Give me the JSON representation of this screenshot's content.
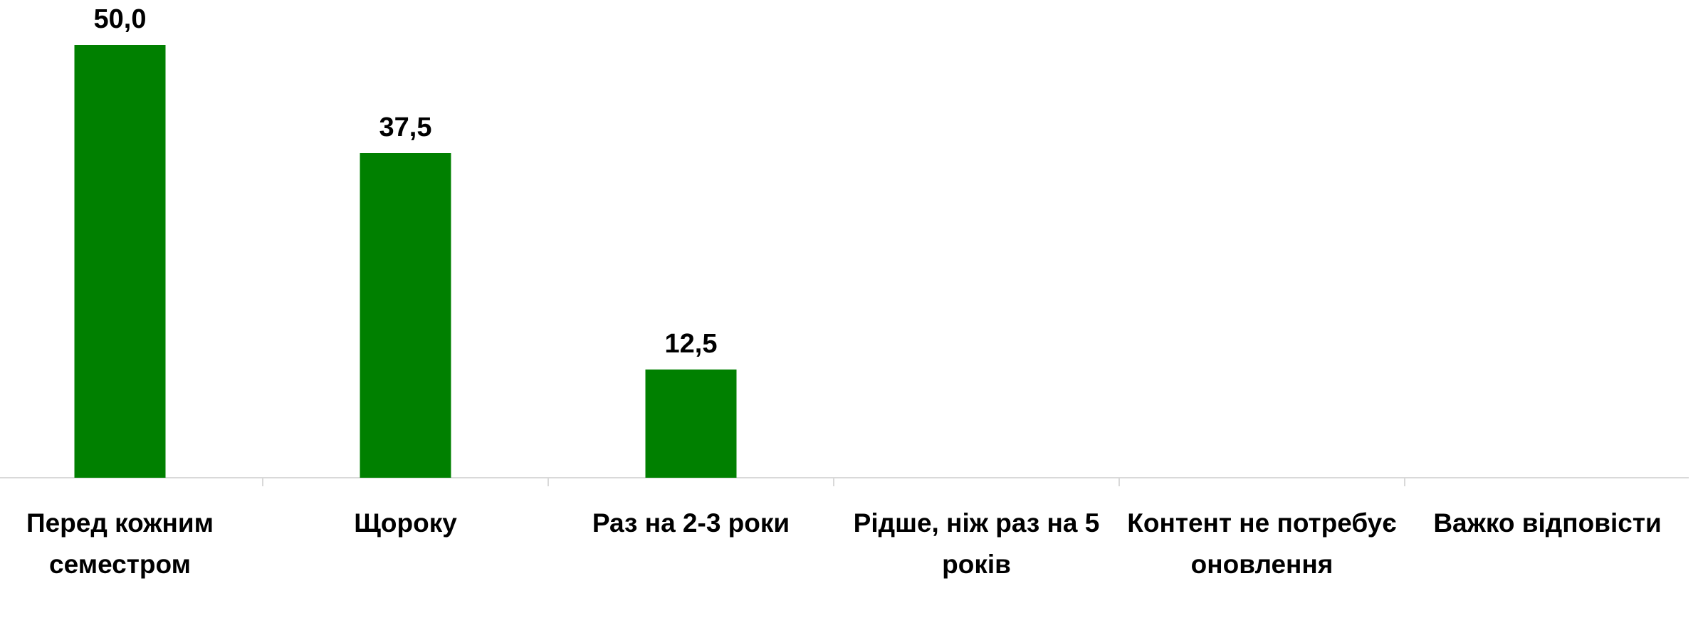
{
  "chart_data": {
    "type": "bar",
    "categories": [
      "Перед кожним семестром",
      "Щороку",
      "Раз на 2-3 роки",
      "Рідше, ніж раз на 5 років",
      "Контент не потребує оновлення",
      "Важко відповісти"
    ],
    "values": [
      50.0,
      37.5,
      12.5,
      null,
      null,
      null
    ],
    "value_labels": [
      "50,0",
      "37,5",
      "12,5",
      null,
      null,
      null
    ],
    "color": "#008000"
  }
}
